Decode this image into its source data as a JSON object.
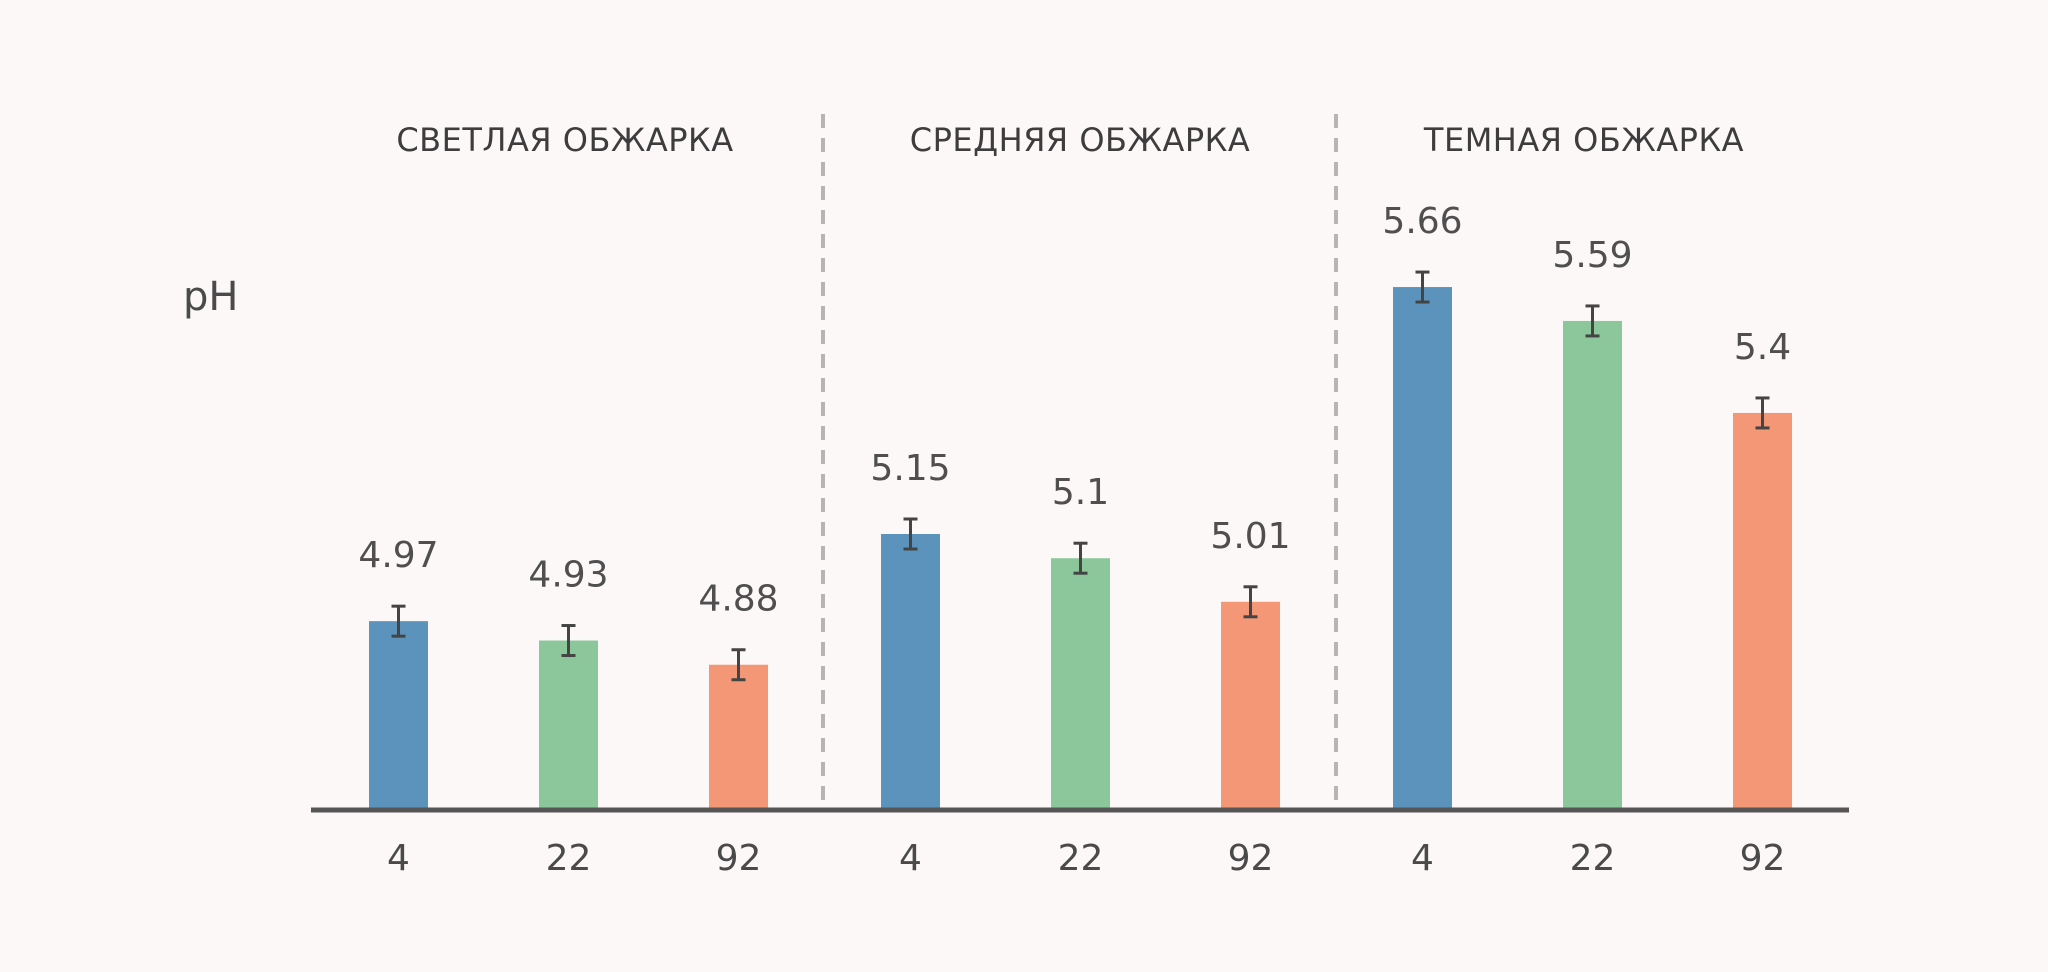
{
  "chart_data": {
    "type": "bar",
    "ylabel": "pH",
    "colors": {
      "4": "#5b93bd",
      "22": "#8cc79c",
      "92": "#f39777",
      "axis": "#555555",
      "divider": "#b5b5b5",
      "errorbar": "#444444",
      "background": "#fcf8f8"
    },
    "groups": [
      {
        "title": "СВЕТЛАЯ ОБЖАРКА",
        "categories": [
          "4",
          "22",
          "92"
        ],
        "values": [
          4.97,
          4.93,
          4.88
        ]
      },
      {
        "title": "СРЕДНЯЯ ОБЖАРКА",
        "categories": [
          "4",
          "22",
          "92"
        ],
        "values": [
          5.15,
          5.1,
          5.01
        ]
      },
      {
        "title": "ТЕМНАЯ ОБЖАРКА",
        "categories": [
          "4",
          "22",
          "92"
        ],
        "values": [
          5.66,
          5.59,
          5.4
        ]
      }
    ],
    "value_labels": [
      [
        "4.97",
        "4.93",
        "4.88"
      ],
      [
        "5.15",
        "5.1",
        "5.01"
      ],
      [
        "5.66",
        "5.59",
        "5.4"
      ]
    ],
    "ylim": [
      4.58,
      5.72
    ],
    "grid": false,
    "legend": "none",
    "error_bars": true
  }
}
